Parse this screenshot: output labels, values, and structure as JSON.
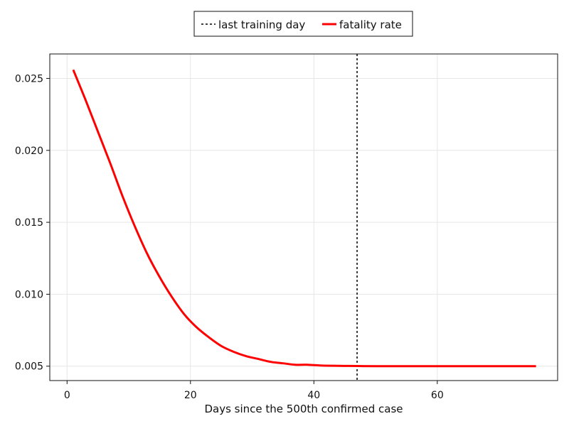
{
  "chart_data": {
    "type": "line",
    "title": "",
    "xlabel": "Days since the 500th confirmed case",
    "ylabel": "",
    "xlim": [
      -2.8,
      79.5
    ],
    "ylim": [
      0.004,
      0.0267
    ],
    "xticks": [
      0,
      20,
      40,
      60
    ],
    "xtick_labels": [
      "0",
      "20",
      "40",
      "60"
    ],
    "yticks": [
      0.005,
      0.01,
      0.015,
      0.02,
      0.025
    ],
    "ytick_labels": [
      "0.005",
      "0.010",
      "0.015",
      "0.020",
      "0.025"
    ],
    "grid": true,
    "legend_position": "top-center",
    "vlines": [
      {
        "name": "last training day",
        "x": 47,
        "color": "#000000",
        "style": "dashed"
      }
    ],
    "series": [
      {
        "name": "fatality rate",
        "color": "#ff0000",
        "x": [
          1,
          3,
          5,
          7,
          9,
          11,
          13,
          15,
          17,
          19,
          21,
          23,
          25,
          27,
          29,
          31,
          33,
          35,
          37,
          39,
          41,
          43,
          45,
          47,
          50,
          55,
          60,
          65,
          70,
          76
        ],
        "y": [
          0.0256,
          0.0235,
          0.0213,
          0.0191,
          0.0168,
          0.0147,
          0.0128,
          0.0112,
          0.0098,
          0.0086,
          0.0077,
          0.007,
          0.0064,
          0.006,
          0.0057,
          0.0055,
          0.0053,
          0.0052,
          0.0051,
          0.0051,
          0.00505,
          0.00503,
          0.00502,
          0.00501,
          0.005,
          0.005,
          0.005,
          0.005,
          0.005,
          0.005
        ]
      }
    ]
  }
}
